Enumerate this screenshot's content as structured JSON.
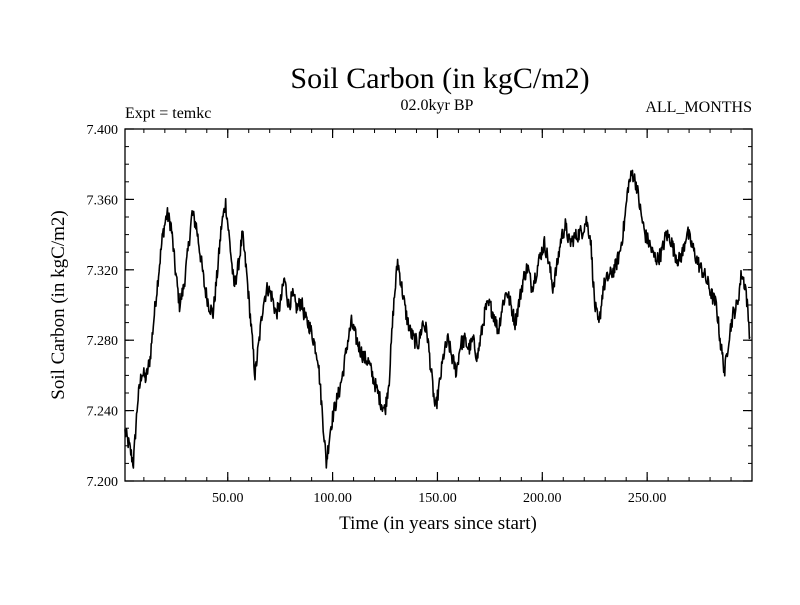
{
  "chart_data": {
    "type": "line",
    "title": "Soil Carbon (in kgC/m2)",
    "subtitle_left": "Expt = temkc",
    "subtitle_center": "02.0kyr BP",
    "subtitle_right": "ALL_MONTHS",
    "xlabel": "Time (in years since start)",
    "ylabel": "Soil Carbon (in kgC/m2)",
    "xlim": [
      1,
      300
    ],
    "ylim": [
      7.2,
      7.4
    ],
    "x_ticks": [
      50,
      100,
      150,
      200,
      250
    ],
    "x_tick_labels": [
      "50.00",
      "100.00",
      "150.00",
      "200.00",
      "250.00"
    ],
    "y_ticks": [
      7.2,
      7.24,
      7.28,
      7.32,
      7.36,
      7.4
    ],
    "y_tick_labels": [
      "7.200",
      "7.240",
      "7.280",
      "7.320",
      "7.360",
      "7.400"
    ],
    "grid": false,
    "series": [
      {
        "name": "Soil Carbon",
        "color": "#000000",
        "x": [
          1,
          3,
          5,
          7,
          9,
          11,
          13,
          15,
          17,
          19,
          21,
          23,
          25,
          27,
          29,
          31,
          33,
          35,
          37,
          39,
          41,
          43,
          45,
          47,
          49,
          51,
          53,
          55,
          57,
          59,
          61,
          63,
          65,
          67,
          69,
          71,
          73,
          75,
          77,
          79,
          81,
          83,
          85,
          87,
          89,
          91,
          93,
          95,
          97,
          99,
          101,
          103,
          105,
          107,
          109,
          111,
          113,
          115,
          117,
          119,
          121,
          123,
          125,
          127,
          129,
          131,
          133,
          135,
          137,
          139,
          141,
          143,
          145,
          147,
          149,
          151,
          153,
          155,
          157,
          159,
          161,
          163,
          165,
          167,
          169,
          171,
          173,
          175,
          177,
          179,
          181,
          183,
          185,
          187,
          189,
          191,
          193,
          195,
          197,
          199,
          201,
          203,
          205,
          207,
          209,
          211,
          213,
          215,
          217,
          219,
          221,
          223,
          225,
          227,
          229,
          231,
          233,
          235,
          237,
          239,
          241,
          243,
          245,
          247,
          249,
          251,
          253,
          255,
          257,
          259,
          261,
          263,
          265,
          267,
          269,
          271,
          273,
          275,
          277,
          279,
          281,
          283,
          285,
          287,
          289,
          291,
          293,
          295,
          297,
          299
        ],
        "values": [
          7.228,
          7.22,
          7.21,
          7.245,
          7.262,
          7.258,
          7.27,
          7.295,
          7.318,
          7.34,
          7.352,
          7.345,
          7.32,
          7.3,
          7.31,
          7.33,
          7.352,
          7.345,
          7.328,
          7.31,
          7.3,
          7.295,
          7.318,
          7.345,
          7.358,
          7.335,
          7.31,
          7.322,
          7.34,
          7.318,
          7.29,
          7.26,
          7.28,
          7.302,
          7.31,
          7.305,
          7.295,
          7.3,
          7.315,
          7.3,
          7.305,
          7.298,
          7.302,
          7.292,
          7.288,
          7.28,
          7.27,
          7.24,
          7.21,
          7.23,
          7.242,
          7.25,
          7.262,
          7.278,
          7.29,
          7.282,
          7.275,
          7.27,
          7.268,
          7.26,
          7.252,
          7.245,
          7.24,
          7.258,
          7.298,
          7.325,
          7.31,
          7.295,
          7.285,
          7.28,
          7.278,
          7.29,
          7.285,
          7.262,
          7.24,
          7.255,
          7.272,
          7.28,
          7.27,
          7.262,
          7.278,
          7.28,
          7.275,
          7.28,
          7.27,
          7.284,
          7.298,
          7.3,
          7.294,
          7.285,
          7.3,
          7.308,
          7.3,
          7.29,
          7.302,
          7.315,
          7.322,
          7.31,
          7.318,
          7.328,
          7.335,
          7.325,
          7.31,
          7.322,
          7.338,
          7.345,
          7.335,
          7.338,
          7.34,
          7.342,
          7.348,
          7.338,
          7.3,
          7.288,
          7.31,
          7.315,
          7.318,
          7.322,
          7.33,
          7.345,
          7.368,
          7.375,
          7.368,
          7.352,
          7.34,
          7.335,
          7.328,
          7.326,
          7.33,
          7.34,
          7.338,
          7.33,
          7.325,
          7.33,
          7.342,
          7.335,
          7.328,
          7.322,
          7.318,
          7.312,
          7.305,
          7.3,
          7.278,
          7.262,
          7.282,
          7.295,
          7.3,
          7.318,
          7.31,
          7.282
        ]
      }
    ]
  }
}
